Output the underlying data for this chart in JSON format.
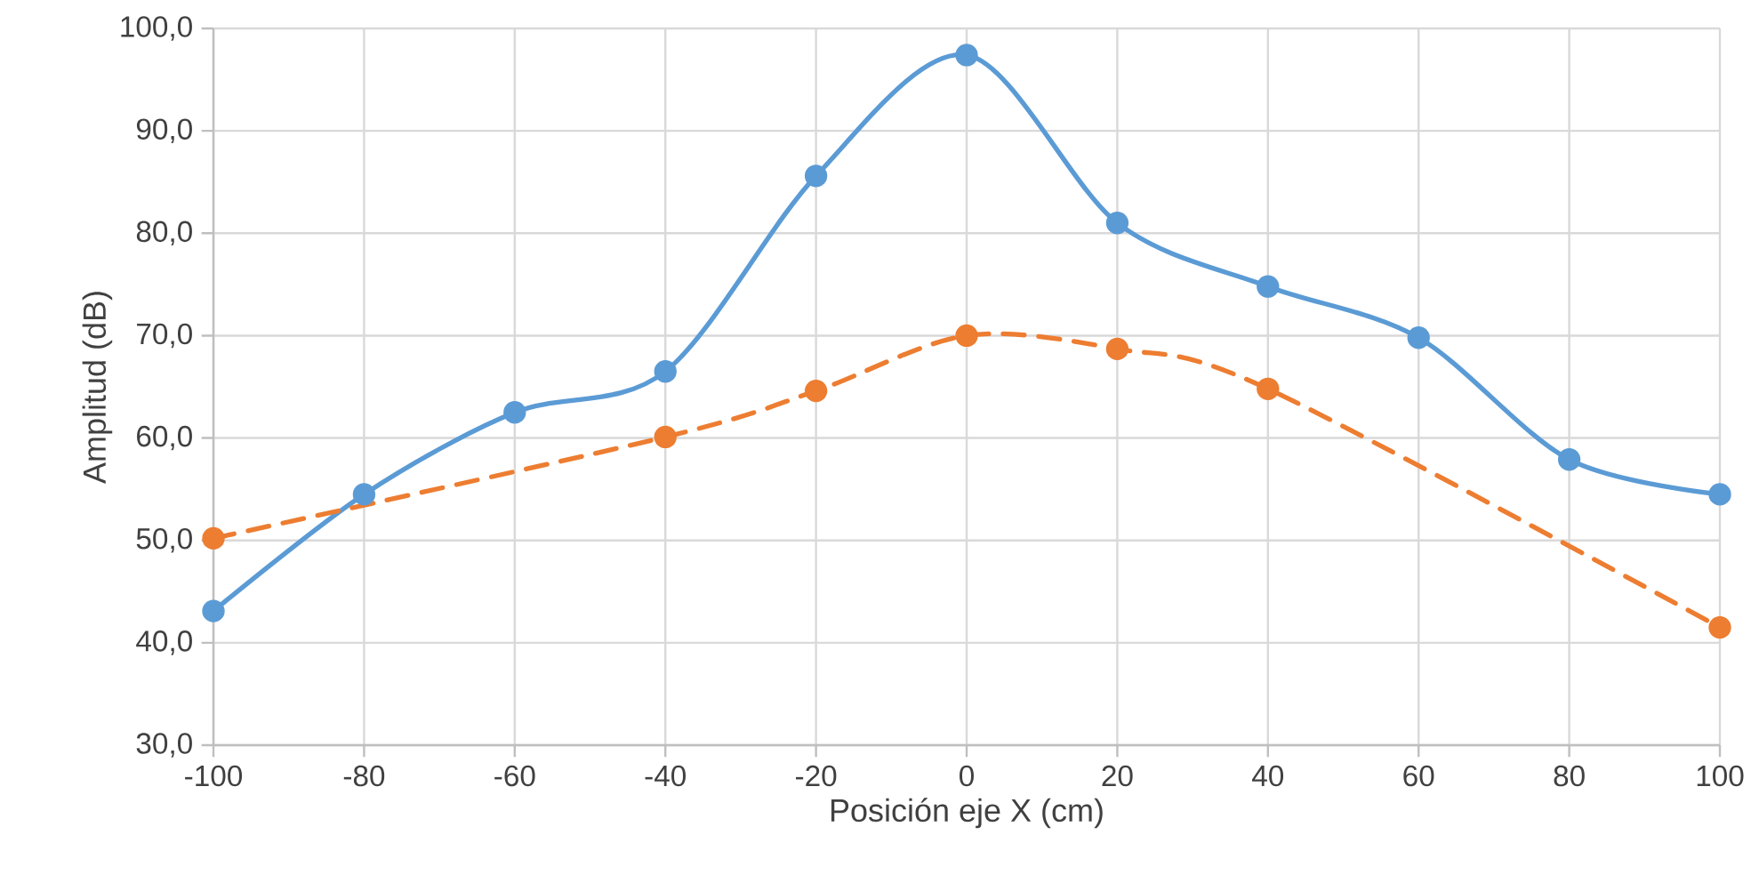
{
  "chart_data": {
    "type": "line",
    "xlabel": "Posición eje X (cm)",
    "ylabel": "Amplitud (dB)",
    "xlim": [
      -100,
      100
    ],
    "xticks": [
      -100,
      -80,
      -60,
      -40,
      -20,
      0,
      20,
      40,
      60,
      80,
      100
    ],
    "ylim": [
      30,
      100
    ],
    "yticks": [
      {
        "value": 30,
        "label": "30,0"
      },
      {
        "value": 40,
        "label": "40,0"
      },
      {
        "value": 50,
        "label": "50,0"
      },
      {
        "value": 60,
        "label": "60,0"
      },
      {
        "value": 70,
        "label": "70,0"
      },
      {
        "value": 80,
        "label": "80,0"
      },
      {
        "value": 90,
        "label": "90,0"
      },
      {
        "value": 100,
        "label": "100,0"
      }
    ],
    "grid": true,
    "marker": "circle",
    "series": [
      {
        "color": "#5b9bd5",
        "line_style": "solid",
        "x": [
          -100,
          -80,
          -60,
          -40,
          -20,
          0,
          20,
          40,
          60,
          80,
          100
        ],
        "values": [
          43.1,
          54.5,
          62.5,
          66.5,
          85.6,
          97.4,
          81.0,
          74.8,
          69.8,
          57.9,
          54.5
        ]
      },
      {
        "color": "#ed7d31",
        "line_style": "dashed",
        "x": [
          -100,
          -40,
          -20,
          0,
          20,
          40,
          100
        ],
        "values": [
          50.2,
          60.1,
          64.6,
          70.0,
          68.7,
          64.8,
          41.5
        ]
      }
    ]
  }
}
